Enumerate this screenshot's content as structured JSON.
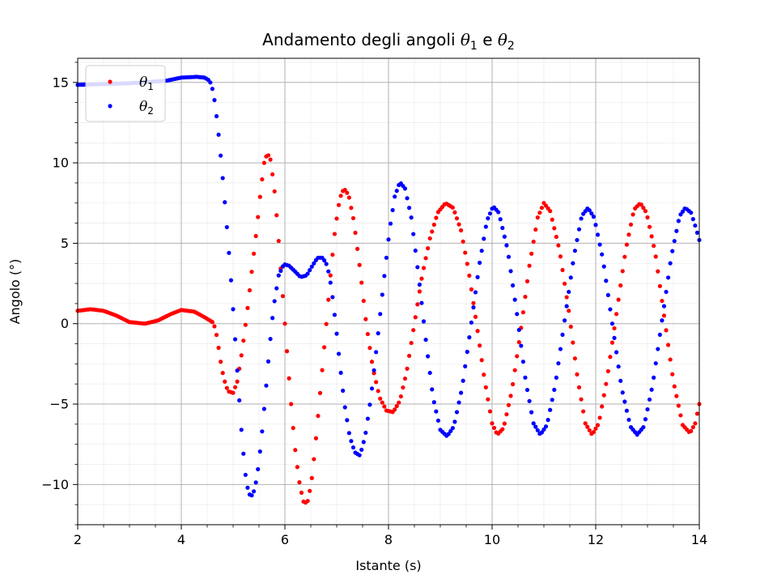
{
  "chart_data": {
    "type": "scatter",
    "title_prefix": "Andamento degli angoli ",
    "title_theta": "θ",
    "title_sub1": "1",
    "title_mid": " e ",
    "title_sub2": "2",
    "xlabel": "Istante (s)",
    "ylabel": "Angolo (°)",
    "xlim": [
      2,
      14
    ],
    "ylim": [
      -12.5,
      16.5
    ],
    "x_ticks": [
      2,
      4,
      6,
      8,
      10,
      12,
      14
    ],
    "x_tick_labels": [
      "2",
      "4",
      "6",
      "8",
      "10",
      "12",
      "14"
    ],
    "y_ticks": [
      -10,
      -5,
      0,
      5,
      10,
      15
    ],
    "y_tick_labels": [
      "−10",
      "−5",
      "0",
      "5",
      "10",
      "15"
    ],
    "grid": true,
    "minor_grid": true,
    "legend_position": "upper-left",
    "series": [
      {
        "name": "θ1",
        "symbol": "θ",
        "subscript": "1",
        "color": "#ff0000",
        "keypoints": [
          [
            2.0,
            0.8
          ],
          [
            2.25,
            0.9
          ],
          [
            2.5,
            0.8
          ],
          [
            2.75,
            0.5
          ],
          [
            3.0,
            0.1
          ],
          [
            3.3,
            0.0
          ],
          [
            3.55,
            0.2
          ],
          [
            3.8,
            0.6
          ],
          [
            4.0,
            0.85
          ],
          [
            4.25,
            0.75
          ],
          [
            4.45,
            0.4
          ],
          [
            4.6,
            0.1
          ],
          [
            4.66,
            -0.3
          ],
          [
            4.72,
            -1.5
          ],
          [
            4.78,
            -2.8
          ],
          [
            4.84,
            -3.6
          ],
          [
            4.9,
            -4.2
          ],
          [
            5.0,
            -4.3
          ],
          [
            5.08,
            -3.6
          ],
          [
            5.15,
            -2.2
          ],
          [
            5.22,
            -0.6
          ],
          [
            5.3,
            1.5
          ],
          [
            5.38,
            3.8
          ],
          [
            5.46,
            6.0
          ],
          [
            5.53,
            8.2
          ],
          [
            5.6,
            10.0
          ],
          [
            5.66,
            10.6
          ],
          [
            5.72,
            10.2
          ],
          [
            5.79,
            8.6
          ],
          [
            5.86,
            6.0
          ],
          [
            5.93,
            3.0
          ],
          [
            6.0,
            0.0
          ],
          [
            6.07,
            -3.0
          ],
          [
            6.14,
            -5.8
          ],
          [
            6.21,
            -8.2
          ],
          [
            6.29,
            -10.1
          ],
          [
            6.37,
            -11.2
          ],
          [
            6.45,
            -11.0
          ],
          [
            6.53,
            -9.4
          ],
          [
            6.61,
            -6.8
          ],
          [
            6.7,
            -3.6
          ],
          [
            6.79,
            -0.4
          ],
          [
            6.88,
            3.0
          ],
          [
            6.97,
            5.9
          ],
          [
            7.06,
            7.8
          ],
          [
            7.14,
            8.4
          ],
          [
            7.23,
            8.0
          ],
          [
            7.33,
            6.4
          ],
          [
            7.45,
            3.4
          ],
          [
            7.57,
            0.0
          ],
          [
            7.7,
            -2.8
          ],
          [
            7.83,
            -4.6
          ],
          [
            7.96,
            -5.4
          ],
          [
            8.09,
            -5.5
          ],
          [
            8.22,
            -4.8
          ],
          [
            8.35,
            -3.0
          ],
          [
            8.5,
            0.0
          ],
          [
            8.65,
            3.0
          ],
          [
            8.8,
            5.3
          ],
          [
            8.95,
            6.9
          ],
          [
            9.1,
            7.5
          ],
          [
            9.25,
            7.2
          ],
          [
            9.4,
            5.8
          ],
          [
            9.55,
            3.2
          ],
          [
            9.7,
            0.0
          ],
          [
            9.85,
            -3.4
          ],
          [
            10.0,
            -6.2
          ],
          [
            10.1,
            -6.9
          ],
          [
            10.22,
            -6.5
          ],
          [
            10.38,
            -4.2
          ],
          [
            10.55,
            -0.5
          ],
          [
            10.72,
            3.6
          ],
          [
            10.88,
            6.6
          ],
          [
            11.0,
            7.5
          ],
          [
            11.12,
            7.0
          ],
          [
            11.3,
            4.6
          ],
          [
            11.48,
            0.8
          ],
          [
            11.65,
            -3.4
          ],
          [
            11.8,
            -6.2
          ],
          [
            11.93,
            -6.9
          ],
          [
            12.06,
            -6.2
          ],
          [
            12.22,
            -3.4
          ],
          [
            12.4,
            0.6
          ],
          [
            12.58,
            4.6
          ],
          [
            12.74,
            7.1
          ],
          [
            12.86,
            7.5
          ],
          [
            12.98,
            6.9
          ],
          [
            13.15,
            4.4
          ],
          [
            13.32,
            0.5
          ],
          [
            13.5,
            -3.6
          ],
          [
            13.68,
            -6.3
          ],
          [
            13.82,
            -6.8
          ],
          [
            13.92,
            -6.2
          ],
          [
            14.0,
            -5.0
          ]
        ]
      },
      {
        "name": "θ2",
        "symbol": "θ",
        "subscript": "2",
        "color": "#0000ff",
        "keypoints": [
          [
            2.0,
            14.85
          ],
          [
            3.0,
            14.95
          ],
          [
            3.7,
            15.1
          ],
          [
            4.0,
            15.3
          ],
          [
            4.3,
            15.35
          ],
          [
            4.45,
            15.3
          ],
          [
            4.55,
            15.1
          ],
          [
            4.62,
            14.4
          ],
          [
            4.7,
            12.4
          ],
          [
            4.78,
            9.8
          ],
          [
            4.86,
            6.8
          ],
          [
            4.94,
            3.6
          ],
          [
            5.02,
            0.0
          ],
          [
            5.09,
            -3.4
          ],
          [
            5.16,
            -6.6
          ],
          [
            5.23,
            -9.2
          ],
          [
            5.3,
            -10.6
          ],
          [
            5.38,
            -10.7
          ],
          [
            5.46,
            -9.6
          ],
          [
            5.54,
            -7.4
          ],
          [
            5.62,
            -4.6
          ],
          [
            5.7,
            -1.6
          ],
          [
            5.78,
            1.0
          ],
          [
            5.88,
            3.0
          ],
          [
            5.98,
            3.7
          ],
          [
            6.08,
            3.6
          ],
          [
            6.18,
            3.3
          ],
          [
            6.3,
            2.9
          ],
          [
            6.42,
            3.0
          ],
          [
            6.53,
            3.6
          ],
          [
            6.63,
            4.1
          ],
          [
            6.73,
            4.1
          ],
          [
            6.82,
            3.6
          ],
          [
            6.9,
            2.2
          ],
          [
            6.98,
            0.0
          ],
          [
            7.06,
            -2.5
          ],
          [
            7.15,
            -5.0
          ],
          [
            7.25,
            -7.0
          ],
          [
            7.35,
            -8.0
          ],
          [
            7.45,
            -8.2
          ],
          [
            7.55,
            -7.0
          ],
          [
            7.66,
            -4.6
          ],
          [
            7.78,
            -1.2
          ],
          [
            7.9,
            2.4
          ],
          [
            8.02,
            5.8
          ],
          [
            8.12,
            7.9
          ],
          [
            8.22,
            8.8
          ],
          [
            8.32,
            8.4
          ],
          [
            8.44,
            6.6
          ],
          [
            8.58,
            3.0
          ],
          [
            8.72,
            -1.0
          ],
          [
            8.86,
            -4.6
          ],
          [
            9.0,
            -6.6
          ],
          [
            9.13,
            -7.0
          ],
          [
            9.26,
            -6.4
          ],
          [
            9.42,
            -4.0
          ],
          [
            9.58,
            -0.4
          ],
          [
            9.75,
            3.6
          ],
          [
            9.9,
            6.4
          ],
          [
            10.02,
            7.3
          ],
          [
            10.13,
            6.9
          ],
          [
            10.3,
            4.6
          ],
          [
            10.48,
            0.6
          ],
          [
            10.65,
            -3.6
          ],
          [
            10.8,
            -6.2
          ],
          [
            10.93,
            -6.9
          ],
          [
            11.06,
            -6.3
          ],
          [
            11.22,
            -3.8
          ],
          [
            11.4,
            0.2
          ],
          [
            11.58,
            4.2
          ],
          [
            11.73,
            6.7
          ],
          [
            11.85,
            7.2
          ],
          [
            11.97,
            6.6
          ],
          [
            12.14,
            4.0
          ],
          [
            12.32,
            0.0
          ],
          [
            12.5,
            -4.0
          ],
          [
            12.67,
            -6.4
          ],
          [
            12.8,
            -6.9
          ],
          [
            12.93,
            -6.4
          ],
          [
            13.1,
            -3.8
          ],
          [
            13.28,
            0.2
          ],
          [
            13.46,
            4.2
          ],
          [
            13.62,
            6.7
          ],
          [
            13.73,
            7.2
          ],
          [
            13.84,
            6.9
          ],
          [
            13.93,
            6.0
          ],
          [
            14.0,
            5.2
          ]
        ]
      }
    ]
  }
}
